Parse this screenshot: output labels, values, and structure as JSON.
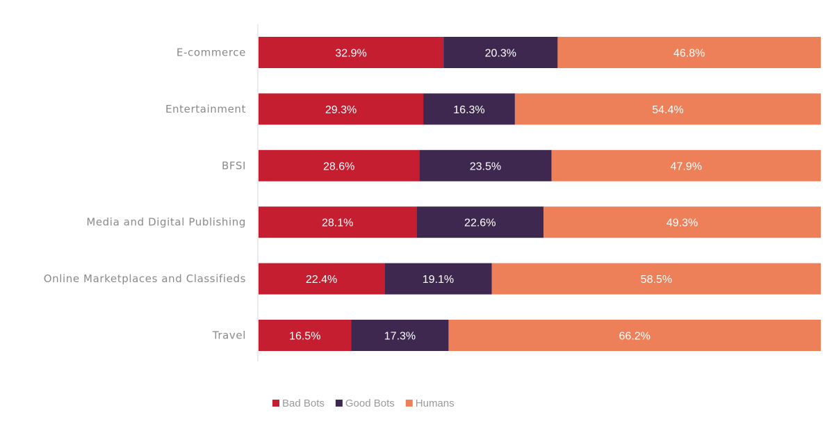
{
  "chart_data": {
    "type": "bar",
    "orientation": "horizontal",
    "stacked": true,
    "title": "",
    "xlabel": "",
    "ylabel": "",
    "xlim": [
      0,
      100
    ],
    "grid": false,
    "legend_position": "bottom-center",
    "categories": [
      "E-commerce",
      "Entertainment",
      "BFSI",
      "Media and Digital Publishing",
      "Online Marketplaces and Classifieds",
      "Travel"
    ],
    "series": [
      {
        "name": "Bad Bots",
        "color": "#c41e30",
        "values": [
          32.9,
          29.3,
          28.6,
          28.1,
          22.4,
          16.5
        ],
        "labels": [
          "32.9%",
          "29.3%",
          "28.6%",
          "28.1%",
          "22.4%",
          "16.5%"
        ]
      },
      {
        "name": "Good Bots",
        "color": "#3e2850",
        "values": [
          20.3,
          16.3,
          23.5,
          22.6,
          19.1,
          17.3
        ],
        "labels": [
          "20.3%",
          "16.3%",
          "23.5%",
          "22.6%",
          "19.1%",
          "17.3%"
        ]
      },
      {
        "name": "Humans",
        "color": "#ee8059",
        "values": [
          46.8,
          54.4,
          47.9,
          49.3,
          58.5,
          66.2
        ],
        "labels": [
          "46.8%",
          "54.4%",
          "47.9%",
          "49.3%",
          "58.5%",
          "66.2%"
        ]
      }
    ]
  }
}
